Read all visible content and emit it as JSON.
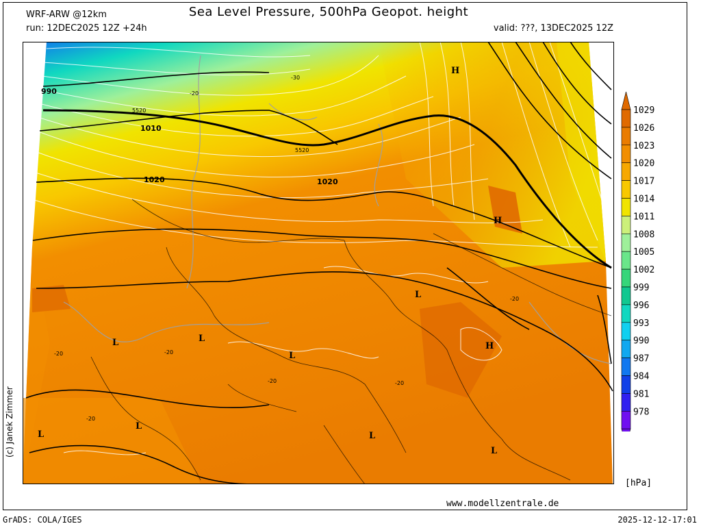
{
  "header": {
    "title": "Sea Level Pressure, 500hPa Geopot. height",
    "model": "WRF-ARW @12km",
    "run": "run: 12DEC2025 12Z +24h",
    "valid": "valid: ???, 13DEC2025 12Z"
  },
  "footer": {
    "website": "www.modellzentrale.de",
    "software": "GrADS: COLA/IGES",
    "timestamp": "2025-12-12-17:01",
    "copyright": "(c) Janek Zimmer"
  },
  "legend": {
    "unit": "[hPa]",
    "levels": [
      {
        "value": "1029",
        "color": "#e06a00"
      },
      {
        "value": "1026",
        "color": "#ea7c00"
      },
      {
        "value": "1023",
        "color": "#f28e00"
      },
      {
        "value": "1020",
        "color": "#f7a800"
      },
      {
        "value": "1017",
        "color": "#f8c800"
      },
      {
        "value": "1014",
        "color": "#f0e400"
      },
      {
        "value": "1011",
        "color": "#ccf07a"
      },
      {
        "value": "1008",
        "color": "#9ef09a"
      },
      {
        "value": "1005",
        "color": "#6ae68a"
      },
      {
        "value": "1002",
        "color": "#36d67a"
      },
      {
        "value": "999",
        "color": "#10c890"
      },
      {
        "value": "996",
        "color": "#10d8c0"
      },
      {
        "value": "993",
        "color": "#10d0f0"
      },
      {
        "value": "990",
        "color": "#10a8f0"
      },
      {
        "value": "987",
        "color": "#1078f0"
      },
      {
        "value": "984",
        "color": "#1040e8"
      },
      {
        "value": "981",
        "color": "#3020f0"
      },
      {
        "value": "978",
        "color": "#7010f0"
      }
    ]
  },
  "map": {
    "pressure_labels": [
      "990",
      "1010",
      "1020",
      "1020"
    ],
    "geopotential_labels": [
      "5520",
      "5520"
    ],
    "temperature_labels": [
      "-30",
      "-20",
      "-20",
      "-20",
      "-20",
      "-20",
      "-20",
      "-20"
    ],
    "high_marker": "H",
    "low_marker": "L"
  }
}
